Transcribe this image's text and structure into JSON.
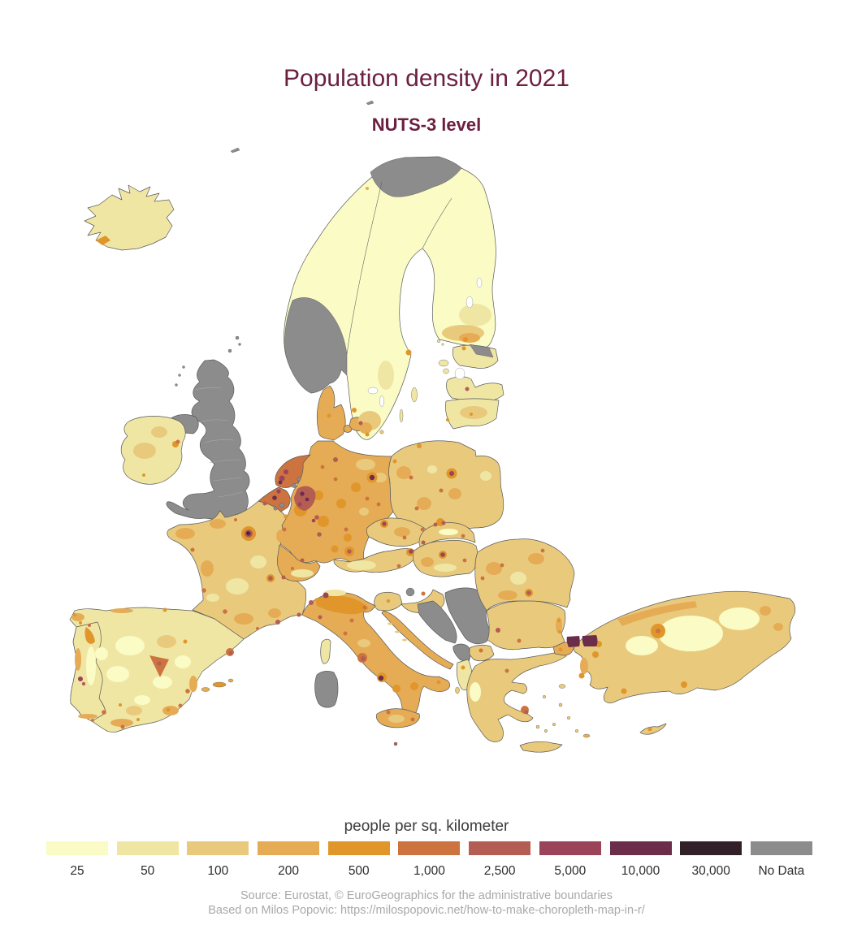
{
  "title": {
    "text": "Population density in 2021"
  },
  "subtitle": {
    "text": "NUTS-3 level"
  },
  "legend": {
    "title": "people per sq. kilometer",
    "classes": [
      {
        "label": "25",
        "color": "#fafbc5"
      },
      {
        "label": "50",
        "color": "#f0e6a4"
      },
      {
        "label": "100",
        "color": "#e9ca7c"
      },
      {
        "label": "200",
        "color": "#e5ac55"
      },
      {
        "label": "500",
        "color": "#e0962b"
      },
      {
        "label": "1,000",
        "color": "#cc7340"
      },
      {
        "label": "2,500",
        "color": "#b35d53"
      },
      {
        "label": "5,000",
        "color": "#9b4459"
      },
      {
        "label": "10,000",
        "color": "#6b2d4a"
      },
      {
        "label": "30,000",
        "color": "#322029"
      },
      {
        "label": "No Data",
        "color": "#8c8c8c"
      }
    ]
  },
  "source": {
    "line1": "Source: Eurostat, © EuroGeographics for the administrative boundaries",
    "line2": "Based on Milos Popovic: https://milospopovic.net/how-to-make-choropleth-map-in-r/"
  },
  "colors": {
    "title_color": "#6b2040",
    "legend_text": "#3c3c3c",
    "legend_labels": "#2e2e2e",
    "source_text": "#a9a9a9",
    "country_border": "#5a5a5a",
    "sea": "#ffffff"
  },
  "map": {
    "type": "choropleth",
    "subject": "Population density by NUTS-3 region, Europe, 2021",
    "unit": "people per sq. kilometer",
    "no_data_areas": [
      "United Kingdom",
      "southern Norway",
      "far northern Norway",
      "north-east Estonia",
      "Bosnia and Herzegovina",
      "Serbia",
      "Montenegro",
      "Sardinia",
      "parts of Belgium and Netherlands",
      "Northern Ireland",
      "north Croatia patch"
    ],
    "region_classes": {
      "iceland": "50",
      "reykjavik": "500",
      "jan-mayen": "No Data",
      "svalbard-fragment": "No Data",
      "fennoscandia": "25",
      "norway-north": "No Data",
      "norway-south": "No Data",
      "tromso": "200",
      "sweden-mid-pale": "50",
      "sweden-south-100": "100",
      "sweden-south-200": "200",
      "stockholm": "500",
      "gothenburg": "500",
      "malmo": "500",
      "finland-mid-band": "50",
      "finland-se-band": "100",
      "finland-se-patch": "200",
      "helsinki": "500",
      "gotland": "50",
      "oland": "50",
      "aland": "50",
      "bornholm": "100",
      "denmark-jutland": "200",
      "denmark-funen": "200",
      "denmark-zealand": "200",
      "copenhagen": "2,500",
      "aarhus": "500",
      "estonia": "50",
      "estonia-ne-grey": "No Data",
      "tallinn": "500",
      "estonia-island": "50",
      "latvia": "50",
      "riga": "2,500",
      "lithuania": "50",
      "lithuania-center": "100",
      "kaunas": "500",
      "klaipeda": "500",
      "poland": "100",
      "poland-patch": "200",
      "poland-pale": "50",
      "warsaw-region": "500",
      "warsaw": "5,000",
      "gdansk": "500",
      "krakow-region": "500",
      "krakow": "2,500",
      "katowice": "2,500",
      "lodz": "1,000",
      "poznan": "1,000",
      "wroclaw": "1,000",
      "szczecin": "500",
      "germany": "200",
      "de-blob": "500",
      "de-pale": "100",
      "ruhr-region": "2,500",
      "ruhr-city": "10,000",
      "cologne": "5,000",
      "berlin-region": "500",
      "berlin": "10,000",
      "hamburg": "2,500",
      "bremen": "1,000",
      "hannover": "1,000",
      "leipzig": "1,000",
      "dresden": "1,000",
      "frankfurt": "5,000",
      "rhine-main": "2,500",
      "stuttgart": "2,500",
      "nuremberg": "1,000",
      "munich-region": "500",
      "munich": "2,500",
      "netherlands": "1,000",
      "randstad": "5,000",
      "rotterdam": "10,000",
      "nl-grey": "No Data",
      "belgium": "1,000",
      "brussels": "10,000",
      "antwerp": "5,000",
      "wallonia-grey": "No Data",
      "luxembourg": "500",
      "lille": "2,500",
      "france": "100",
      "fr-patch": "200",
      "fr-pale": "50",
      "paris-region": "500",
      "paris-ring": "2,500",
      "paris": "10,000",
      "paris-core": "30,000",
      "lyon-region": "500",
      "lyon": "2,500",
      "marseille": "2,500",
      "nice": "2,500",
      "toulouse": "1,000",
      "bordeaux": "1,000",
      "nantes": "1,000",
      "strasbourg": "1,000",
      "montpellier": "1,000",
      "rouen": "1,000",
      "switzerland": "200",
      "zurich": "2,500",
      "geneva": "2,500",
      "bern": "1,000",
      "ch-alps": "50",
      "austria": "100",
      "vienna-region": "500",
      "vienna": "5,000",
      "at-alps": "50",
      "graz": "1,000",
      "czechia": "100",
      "cz-patch": "200",
      "prague-region": "500",
      "prague": "5,000",
      "brno": "1,000",
      "ostrava": "1,000",
      "slovakia": "100",
      "sk-pale": "25",
      "bratislava": "2,500",
      "kosice": "1,000",
      "hungary": "100",
      "hu-pale": "50",
      "hu-patch": "200",
      "budapest-region": "500",
      "budapest": "5,000",
      "debrecen": "1,000",
      "slovenia": "100",
      "ljubljana": "500",
      "croatia-north": "100",
      "croatia-grey": "No Data",
      "zagreb": "1,000",
      "croatia-coast": "200",
      "hr-island": "100",
      "bosnia": "No Data",
      "serbia": "No Data",
      "montenegro": "No Data",
      "albania": "50",
      "tirana": "500",
      "north-macedonia": "100",
      "skopje": "1,000",
      "greece": "100",
      "gr-pale-west": "25",
      "athens-region": "1,000",
      "athens": "2,500",
      "thessaloniki": "1,000",
      "crete": "100",
      "gr-island": "100",
      "corfu": "100",
      "rhodes": "200",
      "lesbos": "100",
      "bulgaria": "100",
      "sofia": "2,500",
      "plovdiv": "1,000",
      "varna": "500",
      "burgas": "500",
      "bg-coast": "200",
      "romania": "100",
      "ro-patch": "200",
      "ro-pale": "50",
      "bucharest-region": "500",
      "bucharest": "2,500",
      "cluj": "1,000",
      "iasi": "1,000",
      "timisoara": "1,000",
      "turkey": "100",
      "tr-pale": "25",
      "tr-blacksea": "200",
      "tr-east": "200",
      "tr-aegean": "200",
      "ankara-region": "500",
      "ankara": "1,000",
      "izmit": "500",
      "bursa": "500",
      "izmir": "500",
      "antalya": "500",
      "adana": "500",
      "istanbul-east": "10,000",
      "istanbul-west": "10,000",
      "turkey-thrace": "200",
      "thrace-dot": "500",
      "cyprus": "100",
      "nicosia": "500",
      "italy": "200",
      "po-valley": "500",
      "milan": "5,000",
      "turin": "2,500",
      "it-alps-pale": "50",
      "genoa": "2,500",
      "venice": "1,000",
      "bologna": "1,000",
      "florence": "1,000",
      "rome-region": "1,000",
      "rome": "2,500",
      "naples-region": "500",
      "naples": "10,000",
      "bari": "500",
      "it-south": "500",
      "it-center-pale": "100",
      "sicily": "200",
      "sicily-center": "100",
      "palermo": "1,000",
      "catania": "1,000",
      "malta": "2,500",
      "sardinia": "No Data",
      "corsica": "50",
      "balearic-major": "500",
      "balearic-minor": "200",
      "spain": "50",
      "es-pale": "25",
      "es-patch-100": "100",
      "es-coast-200": "200",
      "galicia-coast": "200",
      "galicia-dot": "500",
      "oviedo-strip": "200",
      "bilbao": "500",
      "zaragoza": "500",
      "madrid-region": "1,000",
      "madrid": "2,500",
      "barcelona-region": "1,000",
      "barcelona": "2,500",
      "valencia": "1,000",
      "alicante": "1,000",
      "murcia": "500",
      "malaga": "1,000",
      "granada": "500",
      "sevilla": "1,000",
      "cadiz": "1,000",
      "cordoba": "500",
      "portugal": "50",
      "porto-strip": "500",
      "braga": "1,000",
      "lisbon": "5,000",
      "lisbon-south": "2,500",
      "pt-coast": "200",
      "algarve": "200",
      "pt-pale": "25",
      "ireland": "50",
      "ie-patch": "100",
      "dublin": "1,000",
      "dublin-region": "500",
      "cork": "500",
      "northern-ireland": "No Data",
      "great-britain": "No Data",
      "shetland": "No Data",
      "orkney": "No Data",
      "hebrides": "No Data"
    }
  }
}
